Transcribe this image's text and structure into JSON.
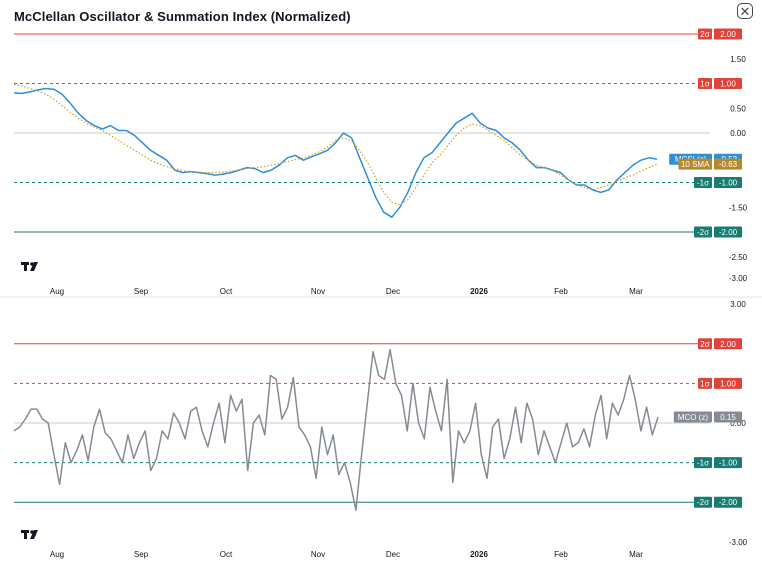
{
  "title": "McClellan Oscillator & Summation Index (Normalized)",
  "close_icon_glyph": "✕",
  "icons": {
    "close": "close-icon",
    "logo": "tradingview-logo"
  },
  "logo_text": "TV",
  "colors": {
    "mcsi": "#2e8fd6",
    "sma": "#d4a017",
    "mco": "#868b93",
    "plus_band": "#e0433b",
    "minus_band": "#177c72",
    "zero": "#c9ccd1",
    "badge_mcsi": "#2e8fd6",
    "badge_sma": "#b7892d",
    "badge_mco": "#868b93"
  },
  "chart_data": [
    {
      "type": "line",
      "xlabels": [
        "Aug",
        "Sep",
        "Oct",
        "Nov",
        "Dec",
        "2026",
        "Feb",
        "Mar"
      ],
      "ylim": [
        -3,
        2.2
      ],
      "yticks": [
        "1.50",
        "0.50",
        "0.00",
        "-1.50",
        "-2.50",
        "-3.00"
      ],
      "bands": [
        {
          "y": 2,
          "tag": "2σ",
          "value": "2.00",
          "style": "solid",
          "side": "plus"
        },
        {
          "y": 1,
          "tag": "1σ",
          "value": "1.00",
          "style": "dashed",
          "side": "plus"
        },
        {
          "y": -1,
          "tag": "-1σ",
          "value": "-1.00",
          "style": "dashed",
          "side": "minus"
        },
        {
          "y": -2,
          "tag": "-2σ",
          "value": "-2.00",
          "style": "solid",
          "side": "minus"
        }
      ],
      "zero_line": 0,
      "series": [
        {
          "name": "MCSI (z)",
          "last_value": "-0.53",
          "style": "solid",
          "color_key": "mcsi",
          "values": [
            0.81,
            0.8,
            0.83,
            0.87,
            0.9,
            0.88,
            0.78,
            0.6,
            0.4,
            0.25,
            0.15,
            0.08,
            0.15,
            0.05,
            0.05,
            -0.05,
            -0.2,
            -0.35,
            -0.45,
            -0.55,
            -0.75,
            -0.8,
            -0.78,
            -0.8,
            -0.82,
            -0.85,
            -0.83,
            -0.8,
            -0.75,
            -0.7,
            -0.72,
            -0.8,
            -0.75,
            -0.65,
            -0.5,
            -0.45,
            -0.55,
            -0.48,
            -0.42,
            -0.35,
            -0.2,
            0.0,
            -0.1,
            -0.5,
            -0.9,
            -1.3,
            -1.6,
            -1.7,
            -1.5,
            -1.2,
            -0.8,
            -0.5,
            -0.4,
            -0.2,
            0.0,
            0.2,
            0.3,
            0.4,
            0.2,
            0.1,
            0.05,
            -0.1,
            -0.2,
            -0.35,
            -0.55,
            -0.7,
            -0.7,
            -0.75,
            -0.8,
            -0.95,
            -1.05,
            -1.05,
            -1.15,
            -1.2,
            -1.15,
            -0.95,
            -0.8,
            -0.65,
            -0.55,
            -0.5,
            -0.53
          ]
        },
        {
          "name": "10 SMA",
          "last_value": "-0.63",
          "style": "dotted",
          "color_key": "sma",
          "values": [
            0.98,
            0.95,
            0.9,
            0.85,
            0.78,
            0.68,
            0.55,
            0.42,
            0.3,
            0.2,
            0.12,
            0.05,
            -0.05,
            -0.15,
            -0.25,
            -0.35,
            -0.45,
            -0.55,
            -0.62,
            -0.68,
            -0.72,
            -0.76,
            -0.78,
            -0.79,
            -0.8,
            -0.8,
            -0.79,
            -0.77,
            -0.75,
            -0.72,
            -0.7,
            -0.68,
            -0.65,
            -0.62,
            -0.58,
            -0.54,
            -0.5,
            -0.45,
            -0.38,
            -0.28,
            -0.15,
            -0.1,
            -0.15,
            -0.35,
            -0.6,
            -0.9,
            -1.2,
            -1.4,
            -1.45,
            -1.35,
            -1.1,
            -0.85,
            -0.6,
            -0.45,
            -0.25,
            -0.05,
            0.1,
            0.18,
            0.15,
            0.05,
            -0.05,
            -0.15,
            -0.3,
            -0.45,
            -0.55,
            -0.65,
            -0.7,
            -0.75,
            -0.85,
            -0.95,
            -1.05,
            -1.1,
            -1.15,
            -1.1,
            -1.05,
            -0.98,
            -0.9,
            -0.85,
            -0.77,
            -0.7,
            -0.63
          ]
        }
      ]
    },
    {
      "type": "line",
      "xlabels": [
        "Aug",
        "Sep",
        "Oct",
        "Nov",
        "Dec",
        "2026",
        "Feb",
        "Mar"
      ],
      "ylim": [
        -3,
        3
      ],
      "yticks": [
        "3.00",
        "0.00",
        "-3.00"
      ],
      "bands": [
        {
          "y": 2,
          "tag": "2σ",
          "value": "2.00",
          "style": "solid",
          "side": "plus"
        },
        {
          "y": 1,
          "tag": "1σ",
          "value": "1.00",
          "style": "dashed",
          "side": "plus"
        },
        {
          "y": -1,
          "tag": "-1σ",
          "value": "-1.00",
          "style": "dashed",
          "side": "minus"
        },
        {
          "y": -2,
          "tag": "-2σ",
          "value": "-2.00",
          "style": "solid",
          "side": "minus"
        }
      ],
      "zero_line": 0,
      "series": [
        {
          "name": "MCO (z)",
          "last_value": "0.15",
          "style": "solid",
          "color_key": "mco",
          "values": [
            -0.2,
            -0.1,
            0.1,
            0.35,
            0.35,
            0.1,
            0.0,
            -0.8,
            -1.55,
            -0.5,
            -1.0,
            -0.7,
            -0.3,
            -0.95,
            -0.1,
            0.35,
            -0.25,
            -0.4,
            -0.7,
            -1.0,
            -0.3,
            -0.9,
            -0.5,
            -0.2,
            -1.2,
            -0.9,
            -0.2,
            -0.4,
            0.25,
            0.0,
            -0.4,
            0.3,
            0.4,
            -0.2,
            -0.6,
            0.0,
            0.5,
            -0.5,
            0.7,
            0.3,
            0.6,
            -1.2,
            0.0,
            0.2,
            -0.3,
            1.2,
            1.1,
            0.1,
            0.4,
            1.15,
            -0.1,
            -0.3,
            -0.6,
            -1.4,
            -0.1,
            -0.8,
            -0.3,
            -1.3,
            -1.0,
            -1.5,
            -2.2,
            -0.8,
            0.5,
            1.8,
            1.2,
            1.1,
            1.85,
            1.0,
            0.7,
            -0.2,
            1.0,
            0.0,
            -0.4,
            0.9,
            0.3,
            -0.2,
            1.1,
            -1.5,
            -0.2,
            -0.5,
            -0.2,
            0.5,
            -0.8,
            -1.4,
            -0.1,
            0.1,
            -0.9,
            -0.4,
            0.4,
            -0.5,
            0.5,
            0.1,
            -0.8,
            -0.2,
            -0.6,
            -1.0,
            -0.5,
            0.0,
            -0.6,
            -0.5,
            -0.15,
            -0.6,
            0.2,
            0.7,
            -0.4,
            0.5,
            0.2,
            0.6,
            1.2,
            0.6,
            -0.2,
            0.4,
            -0.3,
            0.15
          ]
        }
      ]
    }
  ]
}
